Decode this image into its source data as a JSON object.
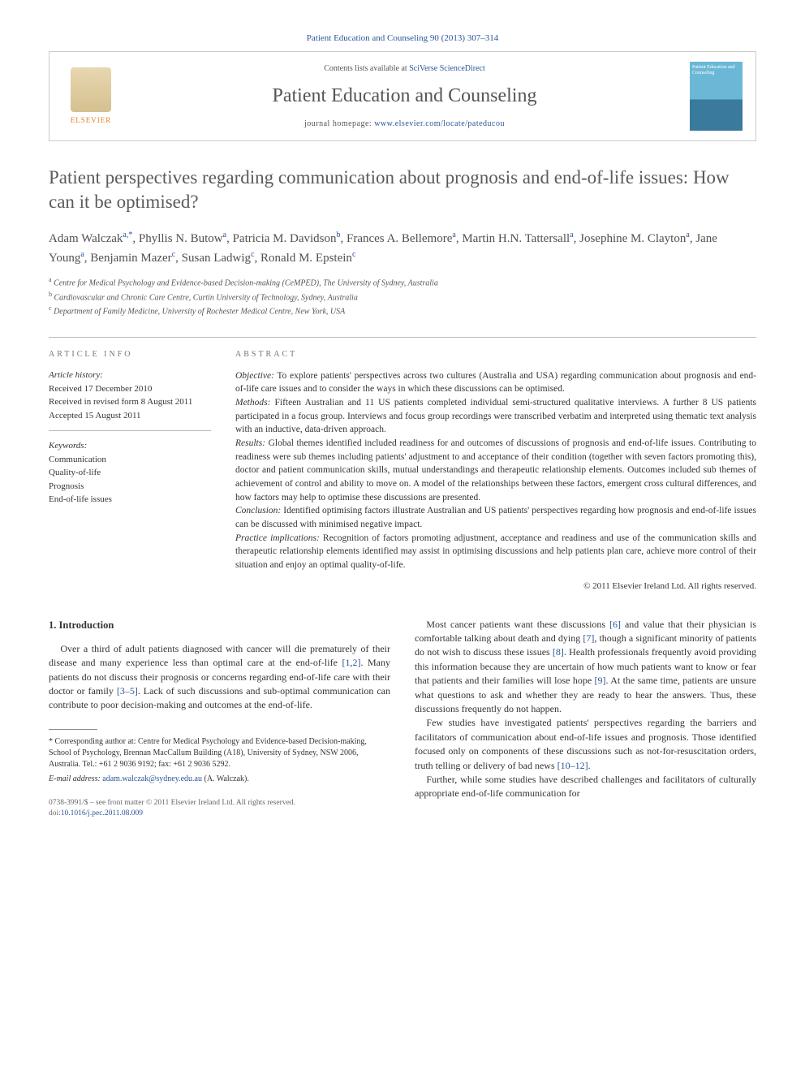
{
  "header": {
    "journal_ref": "Patient Education and Counseling 90 (2013) 307–314",
    "contents_prefix": "Contents lists available at ",
    "contents_link": "SciVerse ScienceDirect",
    "journal_title": "Patient Education and Counseling",
    "homepage_prefix": "journal homepage: ",
    "homepage_url": "www.elsevier.com/locate/pateducou",
    "elsevier_label": "ELSEVIER",
    "cover_title": "Patient Education and Counseling"
  },
  "article": {
    "title": "Patient perspectives regarding communication about prognosis and end-of-life issues: How can it be optimised?",
    "authors_html": "Adam Walczak<sup>a,*</sup>, Phyllis N. Butow<sup>a</sup>, Patricia M. Davidson<sup>b</sup>, Frances A. Bellemore<sup>a</sup>, Martin H.N. Tattersall<sup>a</sup>, Josephine M. Clayton<sup>a</sup>, Jane Young<sup>a</sup>, Benjamin Mazer<sup>c</sup>, Susan Ladwig<sup>c</sup>, Ronald M. Epstein<sup>c</sup>",
    "affiliations": [
      {
        "sup": "a",
        "text": "Centre for Medical Psychology and Evidence-based Decision-making (CeMPED), The University of Sydney, Australia"
      },
      {
        "sup": "b",
        "text": "Cardiovascular and Chronic Care Centre, Curtin University of Technology, Sydney, Australia"
      },
      {
        "sup": "c",
        "text": "Department of Family Medicine, University of Rochester Medical Centre, New York, USA"
      }
    ]
  },
  "info": {
    "heading": "ARTICLE INFO",
    "history_title": "Article history:",
    "history": [
      "Received 17 December 2010",
      "Received in revised form 8 August 2011",
      "Accepted 15 August 2011"
    ],
    "keywords_title": "Keywords:",
    "keywords": [
      "Communication",
      "Quality-of-life",
      "Prognosis",
      "End-of-life issues"
    ]
  },
  "abstract": {
    "heading": "ABSTRACT",
    "objective_label": "Objective:",
    "objective": " To explore patients' perspectives across two cultures (Australia and USA) regarding communication about prognosis and end-of-life care issues and to consider the ways in which these discussions can be optimised.",
    "methods_label": "Methods:",
    "methods": " Fifteen Australian and 11 US patients completed individual semi-structured qualitative interviews. A further 8 US patients participated in a focus group. Interviews and focus group recordings were transcribed verbatim and interpreted using thematic text analysis with an inductive, data-driven approach.",
    "results_label": "Results:",
    "results": " Global themes identified included readiness for and outcomes of discussions of prognosis and end-of-life issues. Contributing to readiness were sub themes including patients' adjustment to and acceptance of their condition (together with seven factors promoting this), doctor and patient communication skills, mutual understandings and therapeutic relationship elements. Outcomes included sub themes of achievement of control and ability to move on. A model of the relationships between these factors, emergent cross cultural differences, and how factors may help to optimise these discussions are presented.",
    "conclusion_label": "Conclusion:",
    "conclusion": " Identified optimising factors illustrate Australian and US patients' perspectives regarding how prognosis and end-of-life issues can be discussed with minimised negative impact.",
    "practice_label": "Practice implications:",
    "practice": " Recognition of factors promoting adjustment, acceptance and readiness and use of the communication skills and therapeutic relationship elements identified may assist in optimising discussions and help patients plan care, achieve more control of their situation and enjoy an optimal quality-of-life.",
    "copyright": "© 2011 Elsevier Ireland Ltd. All rights reserved."
  },
  "body": {
    "section_heading": "1. Introduction",
    "left_paras": [
      "Over a third of adult patients diagnosed with cancer will die prematurely of their disease and many experience less than optimal care at the end-of-life [1,2]. Many patients do not discuss their prognosis or concerns regarding end-of-life care with their doctor or family [3–5]. Lack of such discussions and sub-optimal communication can contribute to poor decision-making and outcomes at the end-of-life."
    ],
    "right_paras": [
      "Most cancer patients want these discussions [6] and value that their physician is comfortable talking about death and dying [7], though a significant minority of patients do not wish to discuss these issues [8]. Health professionals frequently avoid providing this information because they are uncertain of how much patients want to know or fear that patients and their families will lose hope [9]. At the same time, patients are unsure what questions to ask and whether they are ready to hear the answers. Thus, these discussions frequently do not happen.",
      "Few studies have investigated patients' perspectives regarding the barriers and facilitators of communication about end-of-life issues and prognosis. Those identified focused only on components of these discussions such as not-for-resuscitation orders, truth telling or delivery of bad news [10–12].",
      "Further, while some studies have described challenges and facilitators of culturally appropriate end-of-life communication for"
    ]
  },
  "footnote": {
    "corr_label": "* ",
    "corr_text": "Corresponding author at: Centre for Medical Psychology and Evidence-based Decision-making, School of Psychology, Brennan MacCallum Building (A18), University of Sydney, NSW 2006, Australia. Tel.: +61 2 9036 9192; fax: +61 2 9036 5292.",
    "email_label": "E-mail address:",
    "email": "adam.walczak@sydney.edu.au",
    "email_name": " (A. Walczak)."
  },
  "footer": {
    "line1": "0738-3991/$ – see front matter © 2011 Elsevier Ireland Ltd. All rights reserved.",
    "doi_prefix": "doi:",
    "doi": "10.1016/j.pec.2011.08.009"
  },
  "refs": {
    "r12": "[1,2]",
    "r35": "[3–5]",
    "r6": "[6]",
    "r7": "[7]",
    "r8": "[8]",
    "r9": "[9]",
    "r1012": "[10–12]"
  }
}
